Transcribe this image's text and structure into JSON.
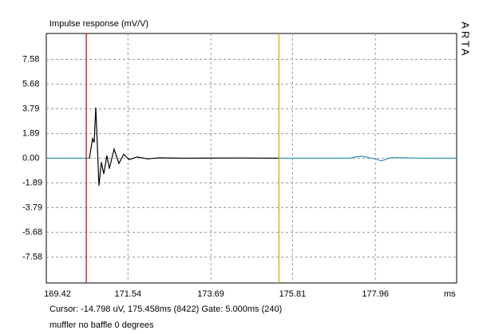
{
  "chart_data": {
    "type": "line",
    "title": "Impulse response (mV/V)",
    "side_label": "ARTA",
    "x_unit": "ms",
    "status": "Cursor: -14.798 uV, 175.458ms (8422)  Gate: 5.000ms (240)",
    "note": "muffler no baffle 0 degrees",
    "xlim": [
      169.42,
      180.07
    ],
    "xticks": [
      169.42,
      171.54,
      173.69,
      175.81,
      177.96
    ],
    "ylim": [
      -9.57,
      9.57
    ],
    "yticks": [
      7.58,
      5.68,
      3.79,
      1.89,
      {
        "value": 0,
        "label": "0.00"
      },
      -1.89,
      -3.79,
      -5.68,
      -7.58
    ],
    "grid": true,
    "cursors": [
      {
        "x": 170.458,
        "color": "#c00000"
      },
      {
        "x": 175.458,
        "color": "#c8b400"
      }
    ],
    "series": [
      {
        "color": "#2a8fc0",
        "x": [
          169.42,
          170.538
        ],
        "values": [
          0,
          0
        ]
      },
      {
        "color": "#000000",
        "x": [
          170.538,
          170.621,
          170.662,
          170.704,
          170.745,
          170.786,
          170.849,
          170.911,
          170.993,
          171.056,
          171.18,
          171.304,
          171.428,
          171.573,
          171.78,
          172.05,
          172.36,
          172.98,
          174.43,
          175.458
        ],
        "values": [
          0,
          1.5,
          1.2,
          3.9,
          1.0,
          -2.1,
          -0.3,
          -1.2,
          0.2,
          -0.8,
          0.7,
          -0.4,
          0.3,
          -0.1,
          0.1,
          -0.05,
          0.03,
          0,
          0.02,
          0
        ]
      },
      {
        "color": "#2a8fc0",
        "x": [
          175.458,
          177.3,
          177.43,
          177.64,
          177.95,
          178.12,
          178.36,
          178.99,
          179.2,
          180.07
        ],
        "values": [
          0,
          0,
          0.1,
          0.15,
          -0.05,
          -0.2,
          0.05,
          0.02,
          0,
          0
        ]
      }
    ]
  }
}
